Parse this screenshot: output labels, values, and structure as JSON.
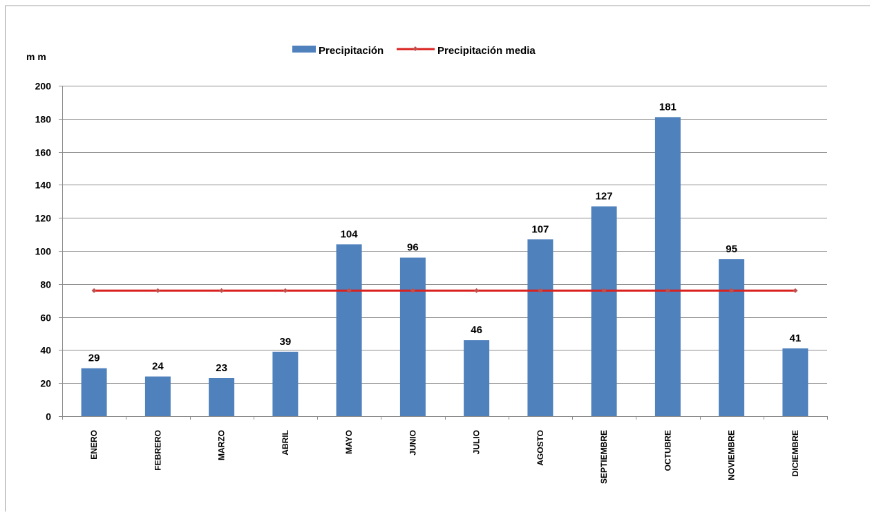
{
  "chart_data": {
    "type": "bar",
    "title": "",
    "xlabel": "",
    "ylabel": "m m",
    "ylim": [
      0,
      200
    ],
    "yticks": [
      0,
      20,
      40,
      60,
      80,
      100,
      120,
      140,
      160,
      180,
      200
    ],
    "grid": true,
    "legend_position": "top",
    "categories": [
      "ENERO",
      "FEBRERO",
      "MARZO",
      "ABRIL",
      "MAYO",
      "JUNIO",
      "JULIO",
      "AGOSTO",
      "SEPTIEMBRE",
      "OCTUBRE",
      "NOVIEMBRE",
      "DICIEMBRE"
    ],
    "series": [
      {
        "name": "Precipitación",
        "kind": "bar",
        "color": "#4f81bd",
        "values": [
          29,
          24,
          23,
          39,
          104,
          96,
          46,
          107,
          127,
          181,
          95,
          41
        ],
        "labels": [
          "29",
          "24",
          "23",
          "39",
          "104",
          "96",
          "46",
          "107",
          "127",
          "181",
          "95",
          "41"
        ]
      },
      {
        "name": "Precipitación media",
        "kind": "line",
        "color": "#d9211e",
        "marker_color": "#c0504d",
        "values": [
          76,
          76,
          76,
          76,
          76,
          76,
          76,
          76,
          76,
          76,
          76,
          76
        ]
      }
    ]
  }
}
